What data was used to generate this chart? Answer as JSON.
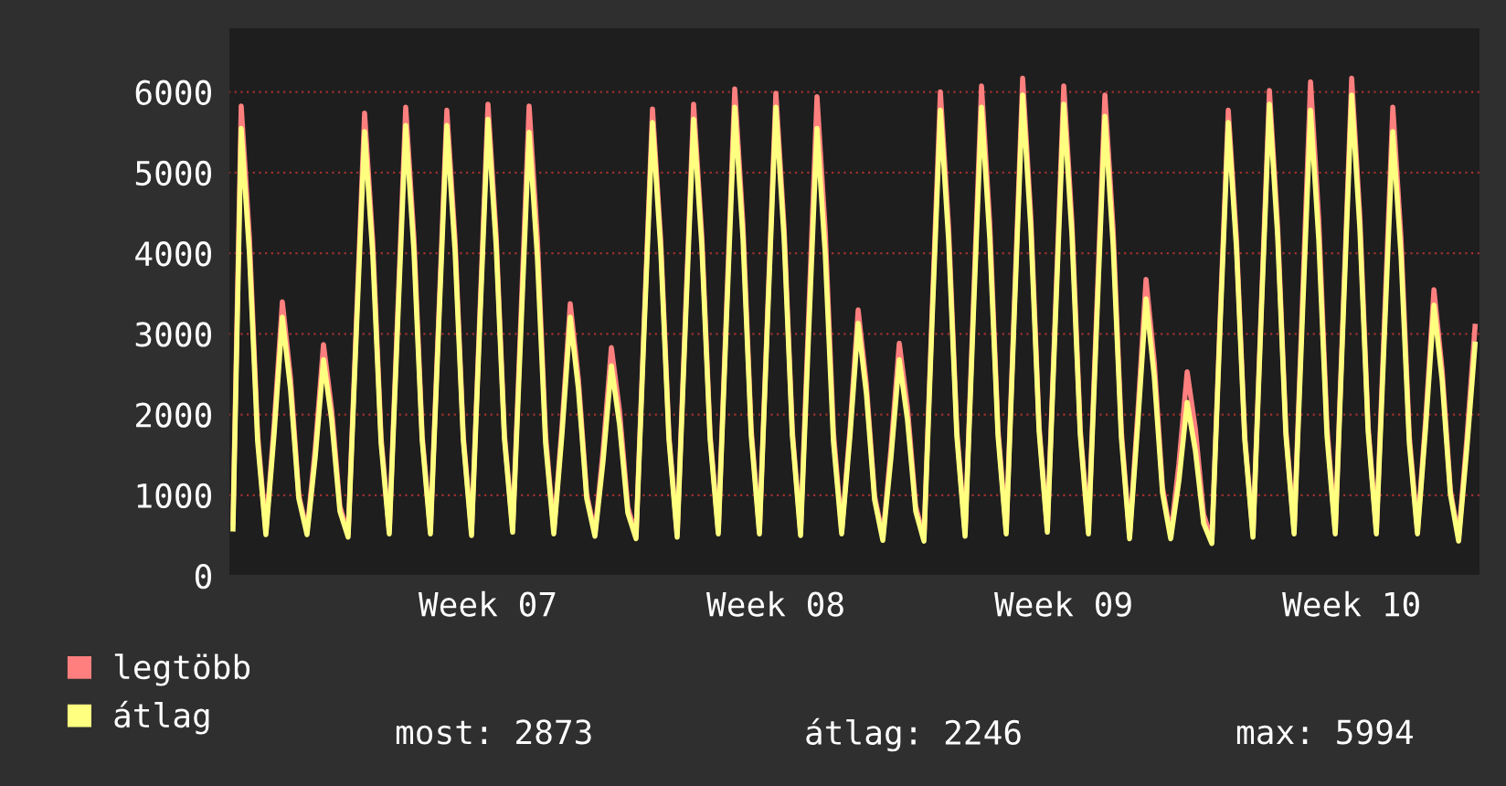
{
  "chart_data": {
    "type": "line",
    "categories": [
      null,
      null,
      null,
      null,
      null,
      null,
      null,
      null,
      null,
      null,
      null,
      null,
      null,
      null,
      null,
      null,
      null,
      null,
      null,
      null,
      null,
      null,
      null,
      null,
      null,
      null,
      null,
      null,
      null,
      null,
      null,
      "Week 07",
      null,
      null,
      null,
      null,
      null,
      null,
      null,
      null,
      null,
      null,
      null,
      null,
      null,
      null,
      null,
      null,
      null,
      null,
      null,
      null,
      null,
      null,
      null,
      null,
      null,
      null,
      null,
      null,
      null,
      null,
      null,
      null,
      null,
      null,
      "Week 08",
      null,
      null,
      null,
      null,
      null,
      null,
      null,
      null,
      null,
      null,
      null,
      null,
      null,
      null,
      null,
      null,
      null,
      null,
      null,
      null,
      null,
      null,
      null,
      null,
      null,
      null,
      null,
      null,
      null,
      null,
      null,
      null,
      null,
      null,
      "Week 09",
      null,
      null,
      null,
      null,
      null,
      null,
      null,
      null,
      null,
      null,
      null,
      null,
      null,
      null,
      null,
      null,
      null,
      null,
      null,
      null,
      null,
      null,
      null,
      null,
      null,
      null,
      null,
      null,
      null,
      null,
      null,
      null,
      null,
      null,
      "Week 10",
      null,
      null,
      null,
      null,
      null,
      null,
      null,
      null,
      null,
      null,
      null,
      null,
      null,
      null,
      null
    ],
    "series": [
      {
        "name": "legtöbb",
        "color": "#ff7f7f",
        "values": [
          650,
          5825,
          4190,
          1750,
          550,
          1870,
          3396,
          2450,
          1000,
          550,
          1580,
          2868,
          2060,
          860,
          520,
          3150,
          5736,
          4130,
          1720,
          560,
          3200,
          5810,
          4180,
          1740,
          560,
          3180,
          5773,
          4160,
          1730,
          540,
          3220,
          5849,
          4210,
          1750,
          580,
          3200,
          5825,
          4190,
          1750,
          560,
          1860,
          3373,
          2430,
          1010,
          530,
          1560,
          2830,
          2040,
          850,
          500,
          3180,
          5788,
          4170,
          1740,
          520,
          3220,
          5849,
          4210,
          1750,
          560,
          3320,
          6037,
          4350,
          1810,
          560,
          3290,
          5985,
          4310,
          1800,
          540,
          3270,
          5940,
          4280,
          1780,
          560,
          1810,
          3297,
          2370,
          990,
          480,
          1590,
          2883,
          2080,
          860,
          470,
          3300,
          6000,
          4320,
          1800,
          530,
          3340,
          6074,
          4370,
          1820,
          560,
          3390,
          6170,
          4440,
          1850,
          580,
          3340,
          6074,
          4370,
          1820,
          560,
          3280,
          5961,
          4290,
          1790,
          500,
          2020,
          3675,
          2650,
          1100,
          500,
          1390,
          2529,
          1820,
          760,
          440,
          3180,
          5773,
          4160,
          1730,
          520,
          3310,
          6019,
          4330,
          1810,
          560,
          3370,
          6125,
          4410,
          1840,
          560,
          3390,
          6170,
          4440,
          1850,
          560,
          3200,
          5811,
          4180,
          1740,
          560,
          1950,
          3546,
          2550,
          1060,
          470,
          1700,
          3094
        ]
      },
      {
        "name": "átlag",
        "color": "#ffff80",
        "values": [
          580,
          5548,
          3990,
          1660,
          510,
          1760,
          3208,
          2310,
          960,
          510,
          1470,
          2679,
          1930,
          800,
          480,
          3030,
          5509,
          3970,
          1650,
          520,
          3070,
          5585,
          4020,
          1680,
          520,
          3070,
          5585,
          4020,
          1680,
          500,
          3110,
          5660,
          4080,
          1700,
          540,
          3030,
          5500,
          3960,
          1650,
          520,
          1760,
          3208,
          2310,
          960,
          490,
          1430,
          2604,
          1870,
          780,
          460,
          3090,
          5622,
          4050,
          1690,
          480,
          3110,
          5660,
          4080,
          1700,
          520,
          3200,
          5811,
          4180,
          1740,
          520,
          3200,
          5811,
          4180,
          1740,
          500,
          3050,
          5547,
          3990,
          1660,
          520,
          1720,
          3132,
          2260,
          940,
          440,
          1470,
          2679,
          1930,
          800,
          430,
          3180,
          5773,
          4160,
          1730,
          490,
          3200,
          5811,
          4180,
          1740,
          520,
          3280,
          5961,
          4290,
          1790,
          540,
          3220,
          5849,
          4210,
          1750,
          520,
          3130,
          5698,
          4100,
          1710,
          460,
          1890,
          3434,
          2470,
          1030,
          460,
          1180,
          2151,
          1550,
          650,
          400,
          3090,
          5622,
          4050,
          1690,
          480,
          3220,
          5849,
          4210,
          1750,
          520,
          3180,
          5773,
          4160,
          1730,
          520,
          3280,
          5961,
          4290,
          1790,
          520,
          3030,
          5509,
          3970,
          1650,
          520,
          1850,
          3358,
          2420,
          1010,
          430,
          1580,
          2873
        ]
      }
    ],
    "ylim": [
      0,
      6800
    ],
    "yticks": [
      0,
      1000,
      2000,
      3000,
      4000,
      5000,
      6000
    ],
    "grid": "y",
    "legend": "bottom left",
    "line_style": "solid",
    "annotations": [
      "most: 2873",
      "átlag: 2246",
      "max: 5994"
    ]
  }
}
